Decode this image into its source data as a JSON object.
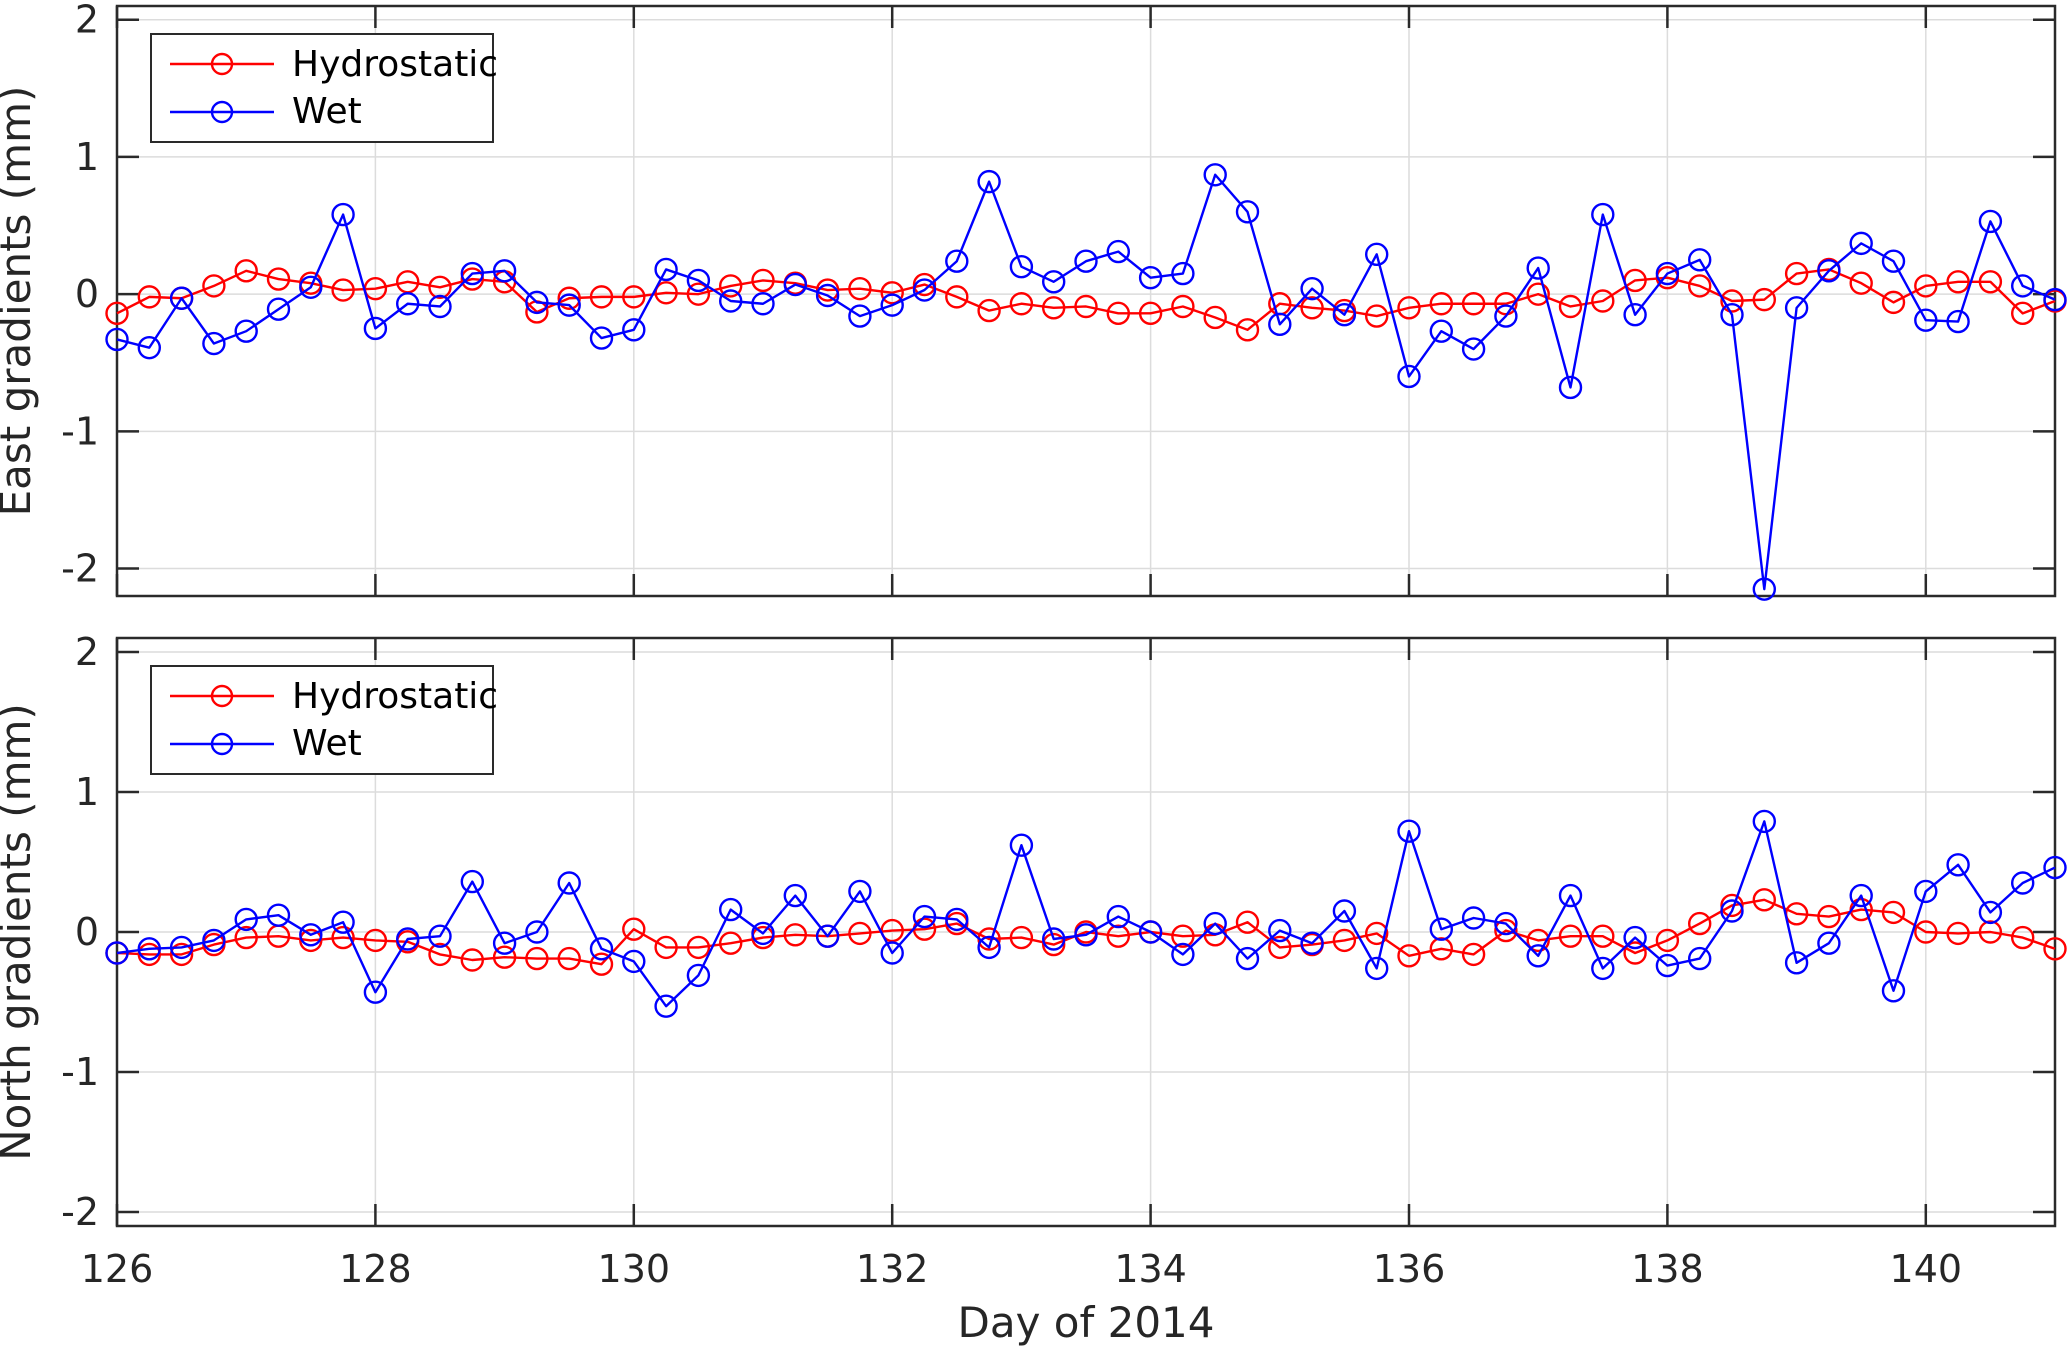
{
  "figure": {
    "xlabel": "Day of 2014",
    "xticks": [
      126,
      128,
      130,
      132,
      134,
      136,
      138,
      140
    ],
    "yticks": [
      2,
      1,
      0,
      -1,
      -2
    ],
    "colors": {
      "hydrostatic": "#ff0000",
      "wet": "#0000ff",
      "grid": "#dcdcdc",
      "axis": "#2a2a2a",
      "text": "#262626"
    },
    "legend": {
      "hydrostatic": "Hydrostatic",
      "wet": "Wet"
    },
    "panels": [
      {
        "id": "east",
        "ylabel": "East gradients (mm)"
      },
      {
        "id": "north",
        "ylabel": "North gradients (mm)"
      }
    ]
  },
  "chart_data": [
    {
      "type": "line",
      "title": "East gradients",
      "ylabel": "East gradients (mm)",
      "xlabel": "",
      "xlim": [
        126,
        141
      ],
      "ylim": [
        -2.2,
        2.1
      ],
      "grid": true,
      "legend_position": "top-left",
      "marker": "circle",
      "x": [
        126,
        126.25,
        126.5,
        126.75,
        127,
        127.25,
        127.5,
        127.75,
        128,
        128.25,
        128.5,
        128.75,
        129,
        129.25,
        129.5,
        129.75,
        130,
        130.25,
        130.5,
        130.75,
        131,
        131.25,
        131.5,
        131.75,
        132,
        132.25,
        132.5,
        132.75,
        133,
        133.25,
        133.5,
        133.75,
        134,
        134.25,
        134.5,
        134.75,
        135,
        135.25,
        135.5,
        135.75,
        136,
        136.25,
        136.5,
        136.75,
        137,
        137.25,
        137.5,
        137.75,
        138,
        138.25,
        138.5,
        138.75,
        139,
        139.25,
        139.5,
        139.75,
        140,
        140.25,
        140.5,
        140.75,
        141
      ],
      "series": [
        {
          "name": "Hydrostatic",
          "color": "#ff0000",
          "values": [
            -0.14,
            -0.02,
            -0.03,
            0.06,
            0.17,
            0.11,
            0.08,
            0.03,
            0.04,
            0.09,
            0.05,
            0.11,
            0.09,
            -0.13,
            -0.03,
            -0.02,
            -0.02,
            0.01,
            0,
            0.06,
            0.1,
            0.08,
            0.03,
            0.04,
            0.01,
            0.07,
            -0.02,
            -0.12,
            -0.07,
            -0.1,
            -0.09,
            -0.14,
            -0.14,
            -0.09,
            -0.17,
            -0.26,
            -0.07,
            -0.1,
            -0.12,
            -0.16,
            -0.1,
            -0.07,
            -0.07,
            -0.07,
            0,
            -0.09,
            -0.05,
            0.1,
            0.12,
            0.06,
            -0.05,
            -0.04,
            0.15,
            0.18,
            0.08,
            -0.06,
            0.06,
            0.09,
            0.09,
            -0.14,
            -0.05
          ]
        },
        {
          "name": "Wet",
          "color": "#0000ff",
          "values": [
            -0.33,
            -0.39,
            -0.03,
            -0.36,
            -0.27,
            -0.11,
            0.05,
            0.58,
            -0.25,
            -0.07,
            -0.09,
            0.15,
            0.17,
            -0.06,
            -0.08,
            -0.32,
            -0.26,
            0.18,
            0.1,
            -0.05,
            -0.07,
            0.07,
            -0.01,
            -0.16,
            -0.08,
            0.03,
            0.24,
            0.82,
            0.2,
            0.09,
            0.24,
            0.31,
            0.12,
            0.15,
            0.87,
            0.6,
            -0.22,
            0.04,
            -0.15,
            0.29,
            -0.6,
            -0.27,
            -0.4,
            -0.16,
            0.19,
            -0.68,
            0.58,
            -0.15,
            0.15,
            0.25,
            -0.15,
            -2.15,
            -0.1,
            0.17,
            0.37,
            0.24,
            -0.19,
            -0.2,
            0.53,
            0.06,
            -0.04
          ]
        }
      ]
    },
    {
      "type": "line",
      "title": "North gradients",
      "ylabel": "North gradients (mm)",
      "xlabel": "Day of 2014",
      "xlim": [
        126,
        141
      ],
      "ylim": [
        -2.1,
        2.1
      ],
      "grid": true,
      "legend_position": "top-left",
      "marker": "circle",
      "x": [
        126,
        126.25,
        126.5,
        126.75,
        127,
        127.25,
        127.5,
        127.75,
        128,
        128.25,
        128.5,
        128.75,
        129,
        129.25,
        129.5,
        129.75,
        130,
        130.25,
        130.5,
        130.75,
        131,
        131.25,
        131.5,
        131.75,
        132,
        132.25,
        132.5,
        132.75,
        133,
        133.25,
        133.5,
        133.75,
        134,
        134.25,
        134.5,
        134.75,
        135,
        135.25,
        135.5,
        135.75,
        136,
        136.25,
        136.5,
        136.75,
        137,
        137.25,
        137.5,
        137.75,
        138,
        138.25,
        138.5,
        138.75,
        139,
        139.25,
        139.5,
        139.75,
        140,
        140.25,
        140.5,
        140.75,
        141
      ],
      "series": [
        {
          "name": "Hydrostatic",
          "color": "#ff0000",
          "values": [
            -0.15,
            -0.16,
            -0.16,
            -0.09,
            -0.04,
            -0.03,
            -0.06,
            -0.04,
            -0.06,
            -0.07,
            -0.16,
            -0.2,
            -0.18,
            -0.19,
            -0.19,
            -0.23,
            0.02,
            -0.11,
            -0.11,
            -0.08,
            -0.04,
            -0.02,
            -0.03,
            -0.01,
            0.01,
            0.02,
            0.06,
            -0.05,
            -0.04,
            -0.09,
            0,
            -0.03,
            0,
            -0.03,
            -0.02,
            0.07,
            -0.11,
            -0.09,
            -0.06,
            -0.01,
            -0.17,
            -0.12,
            -0.16,
            0.01,
            -0.06,
            -0.03,
            -0.03,
            -0.15,
            -0.06,
            0.06,
            0.19,
            0.23,
            0.13,
            0.11,
            0.16,
            0.14,
            0,
            -0.01,
            0,
            -0.04,
            -0.12
          ]
        },
        {
          "name": "Wet",
          "color": "#0000ff",
          "values": [
            -0.15,
            -0.12,
            -0.11,
            -0.06,
            0.09,
            0.12,
            -0.02,
            0.07,
            -0.43,
            -0.05,
            -0.03,
            0.36,
            -0.08,
            0,
            0.35,
            -0.12,
            -0.21,
            -0.53,
            -0.31,
            0.16,
            -0.01,
            0.26,
            -0.03,
            0.29,
            -0.15,
            0.11,
            0.09,
            -0.11,
            0.62,
            -0.05,
            -0.02,
            0.11,
            0,
            -0.16,
            0.06,
            -0.19,
            0.01,
            -0.08,
            0.15,
            -0.26,
            0.72,
            0.02,
            0.1,
            0.06,
            -0.17,
            0.26,
            -0.26,
            -0.04,
            -0.24,
            -0.19,
            0.15,
            0.79,
            -0.22,
            -0.08,
            0.26,
            -0.42,
            0.29,
            0.48,
            0.14,
            0.35,
            0.46
          ]
        }
      ]
    }
  ]
}
